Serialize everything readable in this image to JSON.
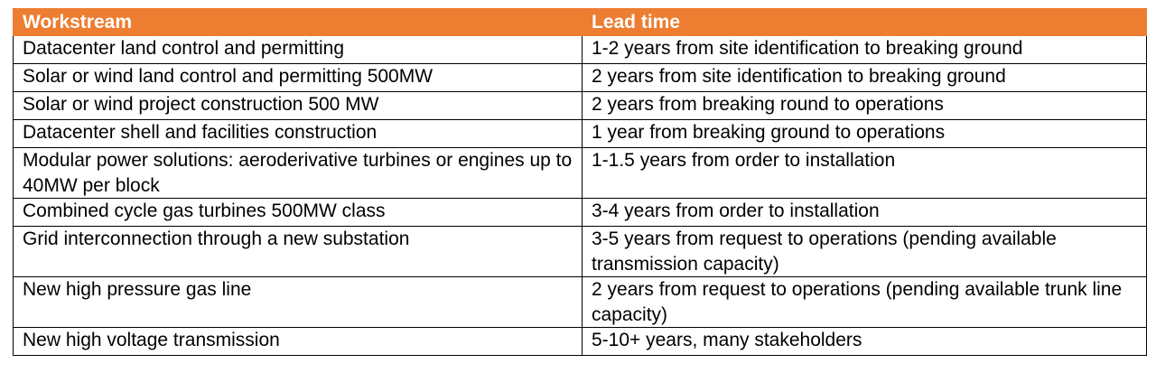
{
  "table": {
    "headers": [
      "Workstream",
      "Lead time"
    ],
    "rows": [
      [
        "Datacenter land control and permitting",
        "1-2 years from site identification to breaking ground"
      ],
      [
        "Solar or wind land control and permitting 500MW",
        "2 years from site identification to breaking ground"
      ],
      [
        "Solar or wind project construction 500 MW",
        "2 years from breaking round to operations"
      ],
      [
        "Datacenter shell and facilities construction",
        "1 year from breaking ground to operations"
      ],
      [
        "Modular power solutions: aeroderivative turbines or engines up to 40MW per block",
        "1-1.5 years from order to installation"
      ],
      [
        "Combined cycle gas turbines 500MW class",
        "3-4 years from order to installation"
      ],
      [
        "Grid interconnection through a new substation",
        "3-5 years from request to operations (pending available transmission capacity)"
      ],
      [
        "New high pressure gas line",
        "2 years from request to operations (pending available trunk line capacity)"
      ],
      [
        "New high voltage transmission",
        "5-10+ years, many stakeholders"
      ]
    ]
  },
  "colors": {
    "header_bg": "#ed7d31",
    "header_text": "#ffffff",
    "border": "#000000"
  }
}
